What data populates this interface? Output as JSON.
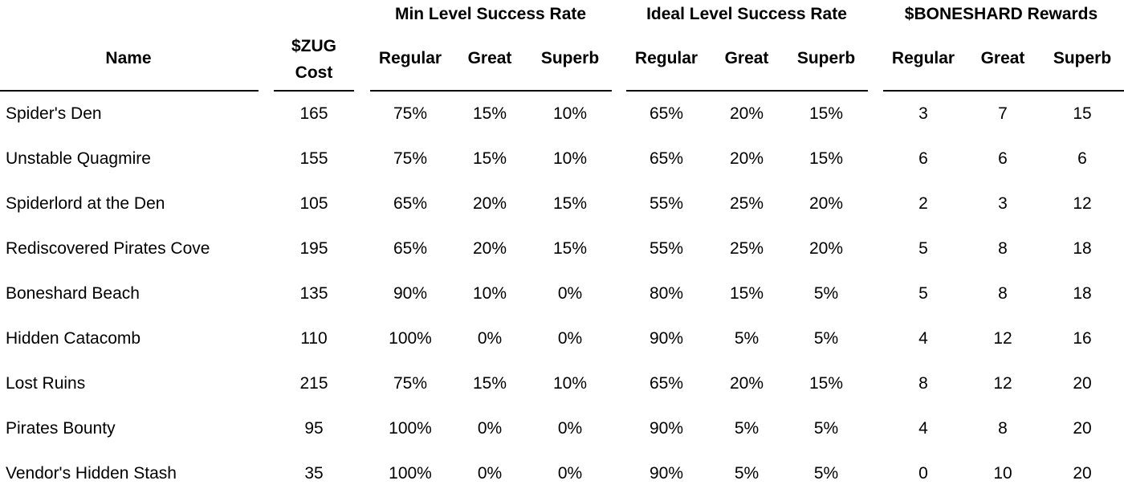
{
  "headers": {
    "name": "Name",
    "cost_line1": "$ZUG",
    "cost_line2": "Cost",
    "groups": [
      {
        "title": "Min Level Success Rate",
        "subs": [
          "Regular",
          "Great",
          "Superb"
        ]
      },
      {
        "title": "Ideal Level Success Rate",
        "subs": [
          "Regular",
          "Great",
          "Superb"
        ]
      },
      {
        "title": "$BONESHARD Rewards",
        "subs": [
          "Regular",
          "Great",
          "Superb"
        ]
      }
    ]
  },
  "rows": [
    {
      "name": "Spider's Den",
      "cost": "165",
      "min": [
        "75%",
        "15%",
        "10%"
      ],
      "ideal": [
        "65%",
        "20%",
        "15%"
      ],
      "rewards": [
        "3",
        "7",
        "15"
      ]
    },
    {
      "name": "Unstable Quagmire",
      "cost": "155",
      "min": [
        "75%",
        "15%",
        "10%"
      ],
      "ideal": [
        "65%",
        "20%",
        "15%"
      ],
      "rewards": [
        "6",
        "6",
        "6"
      ]
    },
    {
      "name": "Spiderlord at the Den",
      "cost": "105",
      "min": [
        "65%",
        "20%",
        "15%"
      ],
      "ideal": [
        "55%",
        "25%",
        "20%"
      ],
      "rewards": [
        "2",
        "3",
        "12"
      ]
    },
    {
      "name": "Rediscovered Pirates Cove",
      "cost": "195",
      "min": [
        "65%",
        "20%",
        "15%"
      ],
      "ideal": [
        "55%",
        "25%",
        "20%"
      ],
      "rewards": [
        "5",
        "8",
        "18"
      ]
    },
    {
      "name": "Boneshard Beach",
      "cost": "135",
      "min": [
        "90%",
        "10%",
        "0%"
      ],
      "ideal": [
        "80%",
        "15%",
        "5%"
      ],
      "rewards": [
        "5",
        "8",
        "18"
      ]
    },
    {
      "name": "Hidden Catacomb",
      "cost": "110",
      "min": [
        "100%",
        "0%",
        "0%"
      ],
      "ideal": [
        "90%",
        "5%",
        "5%"
      ],
      "rewards": [
        "4",
        "12",
        "16"
      ]
    },
    {
      "name": "Lost Ruins",
      "cost": "215",
      "min": [
        "75%",
        "15%",
        "10%"
      ],
      "ideal": [
        "65%",
        "20%",
        "15%"
      ],
      "rewards": [
        "8",
        "12",
        "20"
      ]
    },
    {
      "name": "Pirates Bounty",
      "cost": "95",
      "min": [
        "100%",
        "0%",
        "0%"
      ],
      "ideal": [
        "90%",
        "5%",
        "5%"
      ],
      "rewards": [
        "4",
        "8",
        "20"
      ]
    },
    {
      "name": "Vendor's Hidden Stash",
      "cost": "35",
      "min": [
        "100%",
        "0%",
        "0%"
      ],
      "ideal": [
        "90%",
        "5%",
        "5%"
      ],
      "rewards": [
        "0",
        "10",
        "20"
      ]
    }
  ]
}
